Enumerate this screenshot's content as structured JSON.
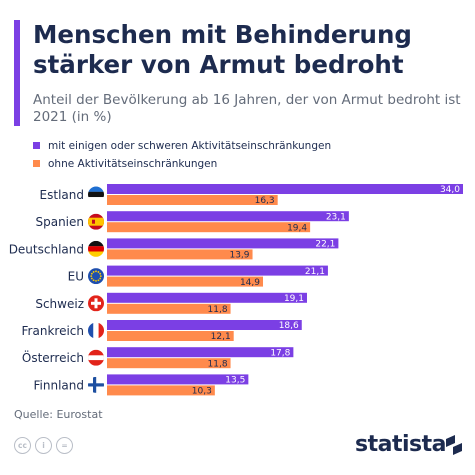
{
  "title": "Menschen mit Behinderung stärker von Armut bedroht",
  "subtitle": "Anteil der Bevölkerung ab 16 Jahren, der von Armut bedroht ist 2021 (in %)",
  "legend": {
    "series1": "mit einigen oder schweren Aktivitätseinschränkungen",
    "series2": "ohne Aktivitätseinschränkungen"
  },
  "colors": {
    "series1": "#7b3fe4",
    "series2": "#ff8a4c",
    "accent": "#7b3fe4",
    "text": "#1d2b4f"
  },
  "source": "Quelle: Eurostat",
  "brand": "statista",
  "license_icons": [
    "cc-icon",
    "attribution-icon",
    "no-derivatives-icon"
  ],
  "chart_data": {
    "type": "bar",
    "orientation": "horizontal",
    "categories": [
      "Estland",
      "Spanien",
      "Deutschland",
      "EU",
      "Schweiz",
      "Frankreich",
      "Österreich",
      "Finnland"
    ],
    "flags": [
      "flag-estonia-icon",
      "flag-spain-icon",
      "flag-germany-icon",
      "flag-eu-icon",
      "flag-switzerland-icon",
      "flag-france-icon",
      "flag-austria-icon",
      "flag-finland-icon"
    ],
    "series": [
      {
        "name": "mit einigen oder schweren Aktivitätseinschränkungen",
        "values": [
          34.0,
          23.1,
          22.1,
          21.1,
          19.1,
          18.6,
          17.8,
          13.5
        ],
        "labels": [
          "34,0",
          "23,1",
          "22,1",
          "21,1",
          "19,1",
          "18,6",
          "17,8",
          "13,5"
        ]
      },
      {
        "name": "ohne Aktivitätseinschränkungen",
        "values": [
          16.3,
          19.4,
          13.9,
          14.9,
          11.8,
          12.1,
          11.8,
          10.3
        ],
        "labels": [
          "16,3",
          "19,4",
          "13,9",
          "14,9",
          "11,8",
          "12,1",
          "11,8",
          "10,3"
        ]
      }
    ],
    "xlim": [
      0,
      34
    ],
    "grid": false
  }
}
